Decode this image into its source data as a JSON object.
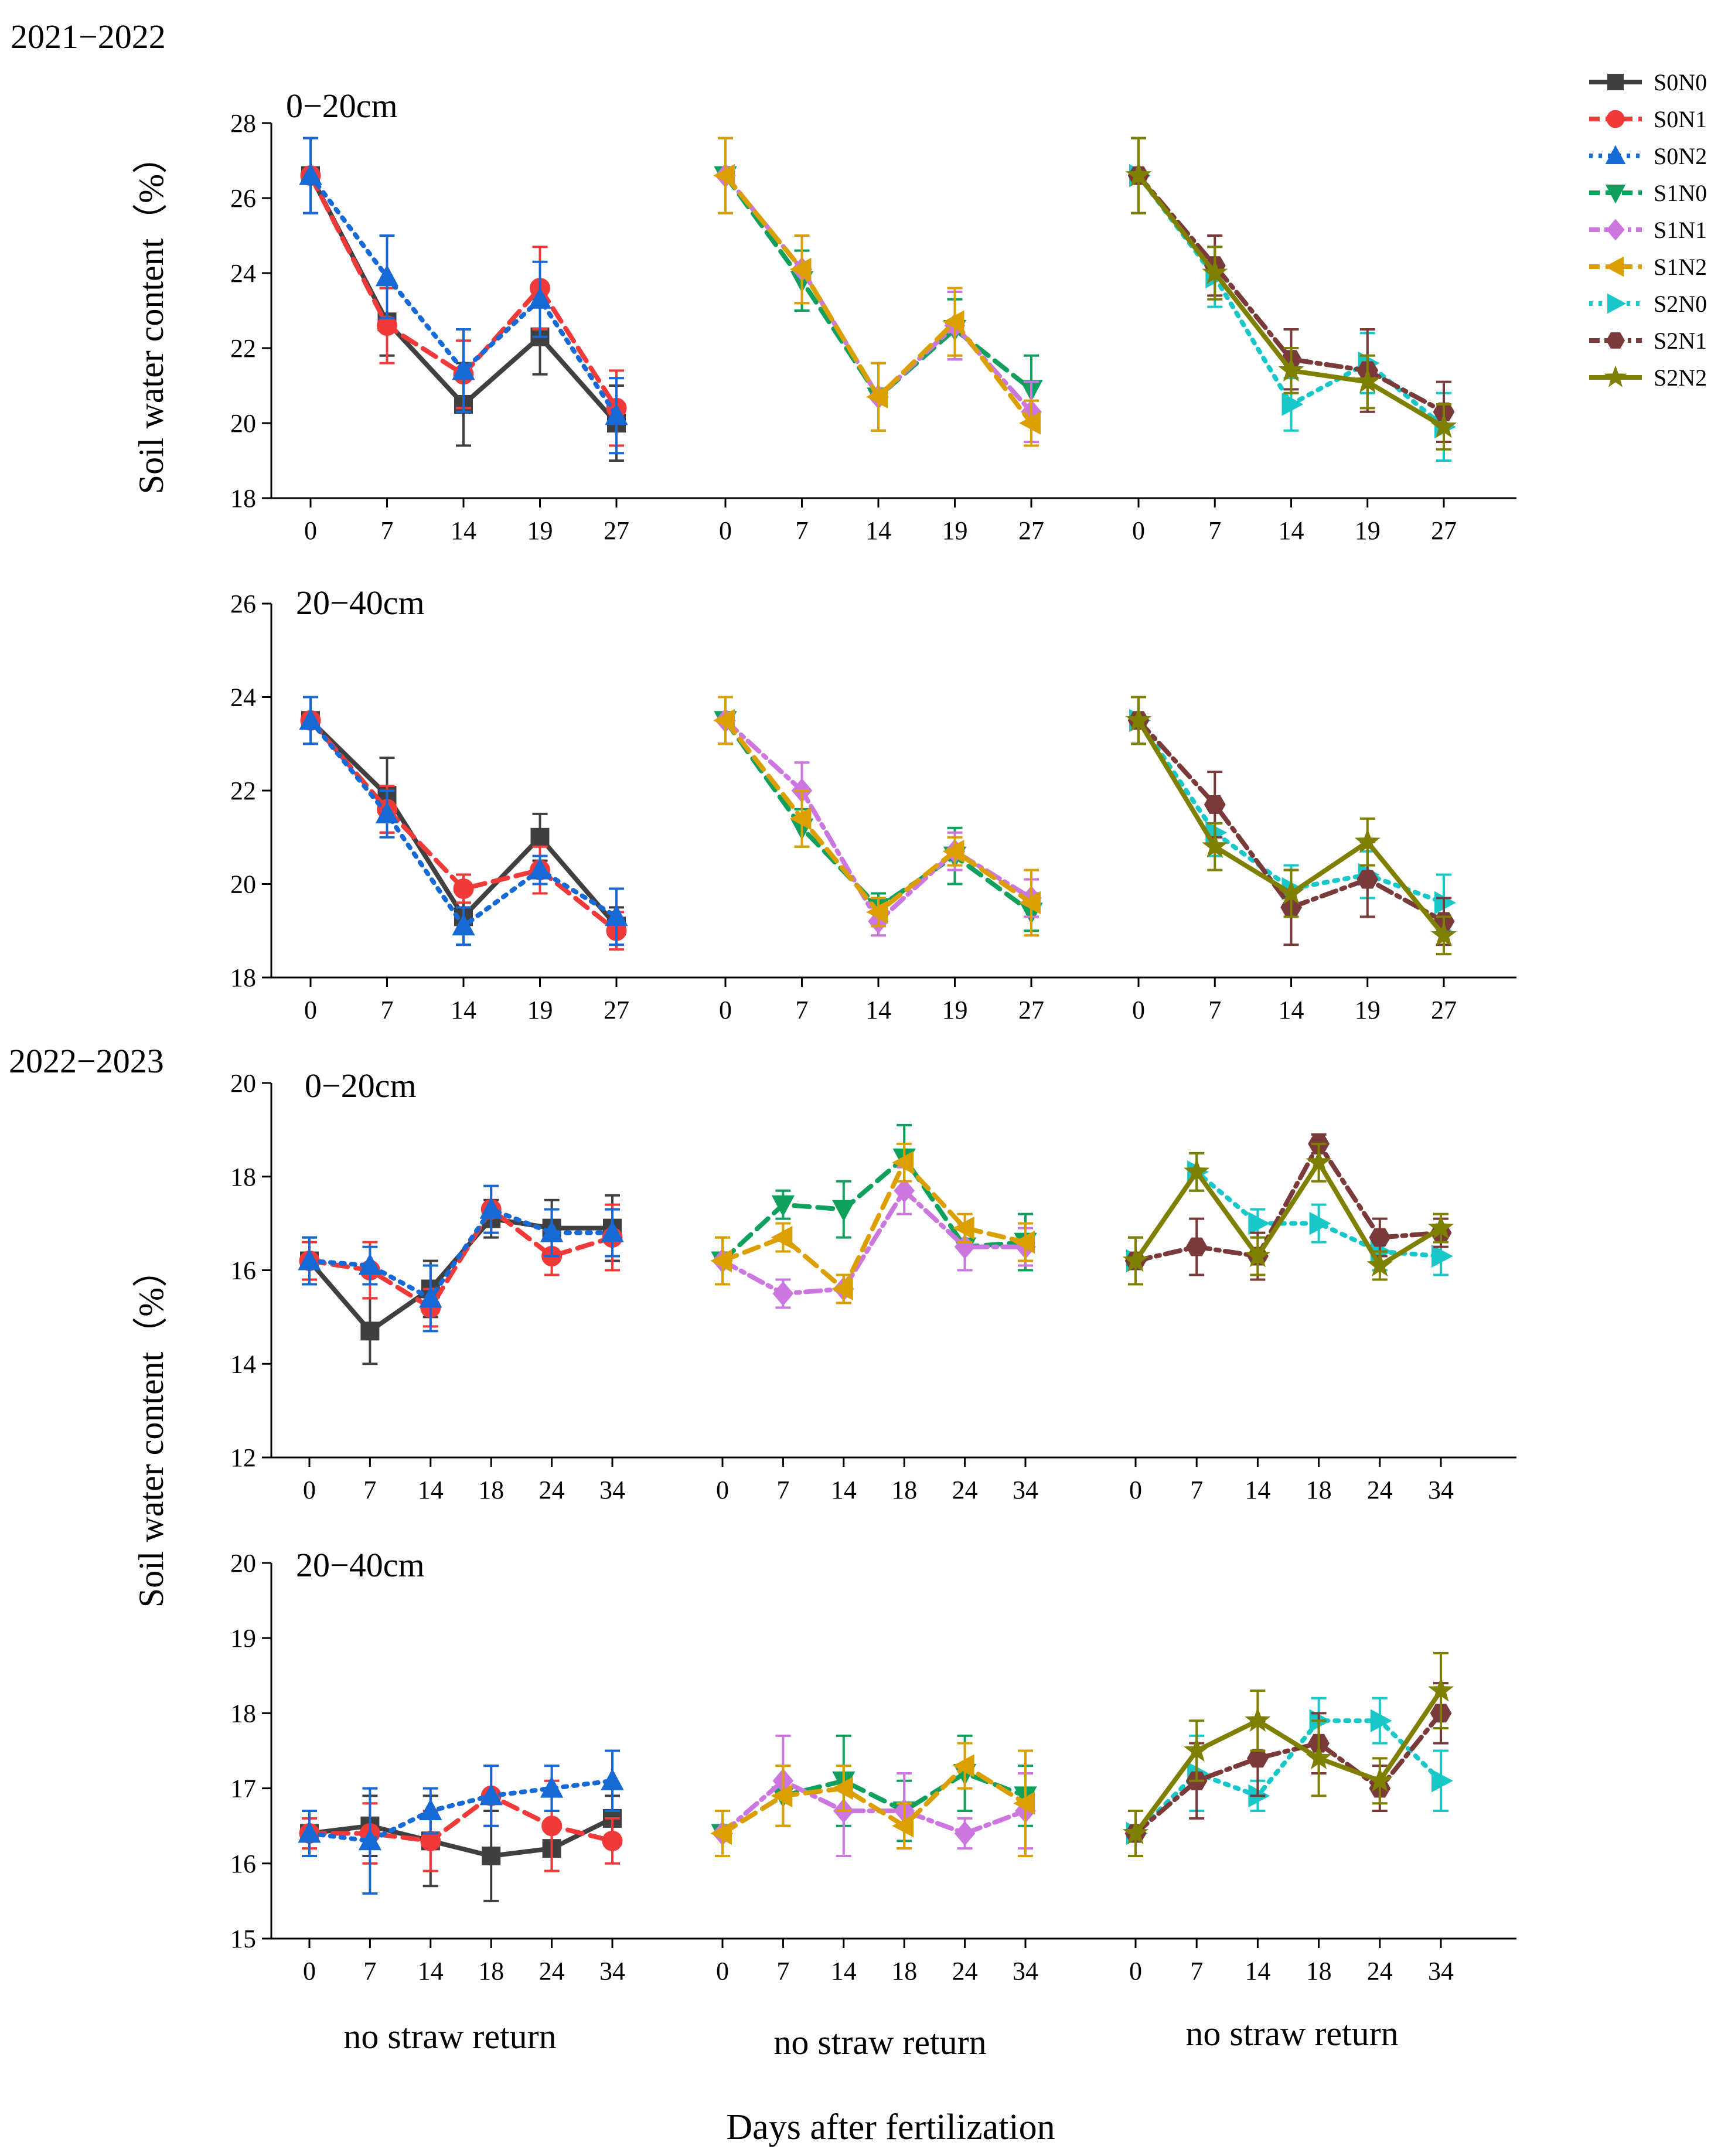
{
  "figure": {
    "x_axis_title": "Days after fertilization",
    "y_axis_title": "Soil water content（%）",
    "group_labels": [
      "no straw return",
      "no straw return",
      "no straw return"
    ]
  },
  "legend": [
    {
      "name": "S0N0",
      "color": "#404040",
      "marker": "square",
      "dash": "solid"
    },
    {
      "name": "S0N1",
      "color": "#f03a3a",
      "marker": "circle",
      "dash": "dash"
    },
    {
      "name": "S0N2",
      "color": "#1769d6",
      "marker": "triangle-up",
      "dash": "dot"
    },
    {
      "name": "S1N0",
      "color": "#0ea05c",
      "marker": "triangle-down",
      "dash": "dash"
    },
    {
      "name": "S1N1",
      "color": "#cc77e0",
      "marker": "diamond",
      "dash": "dashdot"
    },
    {
      "name": "S1N2",
      "color": "#dba000",
      "marker": "triangle-left",
      "dash": "dash"
    },
    {
      "name": "S2N0",
      "color": "#18c8c8",
      "marker": "triangle-right",
      "dash": "dot"
    },
    {
      "name": "S2N1",
      "color": "#7a3a3a",
      "marker": "hexagon",
      "dash": "dashdot"
    },
    {
      "name": "S2N2",
      "color": "#7f7f00",
      "marker": "star",
      "dash": "solid"
    }
  ],
  "chart_data": [
    {
      "type": "line",
      "season": "2021−2022",
      "title": "0−20cm",
      "x": [
        "0",
        "7",
        "14",
        "19",
        "27"
      ],
      "ylim": [
        18,
        28
      ],
      "yticks": [
        "18",
        "20",
        "22",
        "24",
        "26",
        "28"
      ],
      "groups": [
        {
          "series": [
            {
              "name": "S0N0",
              "values": [
                26.6,
                22.7,
                20.5,
                22.3,
                20.0
              ],
              "err": [
                1.0,
                0.9,
                1.1,
                1.0,
                1.0
              ]
            },
            {
              "name": "S0N1",
              "values": [
                26.6,
                22.6,
                21.3,
                23.6,
                20.4
              ],
              "err": [
                1.0,
                1.0,
                0.9,
                1.1,
                1.0
              ]
            },
            {
              "name": "S0N2",
              "values": [
                26.6,
                23.9,
                21.4,
                23.3,
                20.2
              ],
              "err": [
                1.0,
                1.1,
                1.1,
                1.0,
                1.0
              ]
            }
          ]
        },
        {
          "series": [
            {
              "name": "S1N0",
              "values": [
                26.6,
                23.8,
                20.7,
                22.5,
                20.9
              ],
              "err": [
                1.0,
                0.8,
                0.9,
                0.8,
                0.9
              ]
            },
            {
              "name": "S1N1",
              "values": [
                26.6,
                24.1,
                20.7,
                22.6,
                20.3
              ],
              "err": [
                1.0,
                0.9,
                0.9,
                0.9,
                0.8
              ]
            },
            {
              "name": "S1N2",
              "values": [
                26.6,
                24.1,
                20.7,
                22.7,
                20.0
              ],
              "err": [
                1.0,
                0.9,
                0.9,
                0.9,
                0.6
              ]
            }
          ]
        },
        {
          "series": [
            {
              "name": "S2N0",
              "values": [
                26.6,
                23.9,
                20.5,
                21.6,
                19.9
              ],
              "err": [
                1.0,
                0.8,
                0.7,
                0.8,
                0.9
              ]
            },
            {
              "name": "S2N1",
              "values": [
                26.6,
                24.2,
                21.7,
                21.4,
                20.3
              ],
              "err": [
                1.0,
                0.8,
                0.8,
                1.1,
                0.8
              ]
            },
            {
              "name": "S2N2",
              "values": [
                26.6,
                24.0,
                21.4,
                21.1,
                19.9
              ],
              "err": [
                1.0,
                0.7,
                0.6,
                0.7,
                0.6
              ]
            }
          ]
        }
      ]
    },
    {
      "type": "line",
      "season": "",
      "title": "20−40cm",
      "x": [
        "0",
        "7",
        "14",
        "19",
        "27"
      ],
      "ylim": [
        18,
        26
      ],
      "yticks": [
        "18",
        "20",
        "22",
        "24",
        "26"
      ],
      "groups": [
        {
          "series": [
            {
              "name": "S0N0",
              "values": [
                23.5,
                21.9,
                19.3,
                21.0,
                19.1
              ],
              "err": [
                0.5,
                0.8,
                0.6,
                0.5,
                0.4
              ]
            },
            {
              "name": "S0N1",
              "values": [
                23.5,
                21.6,
                19.9,
                20.3,
                19.0
              ],
              "err": [
                0.5,
                0.5,
                0.3,
                0.5,
                0.4
              ]
            },
            {
              "name": "S0N2",
              "values": [
                23.5,
                21.5,
                19.1,
                20.3,
                19.3
              ],
              "err": [
                0.5,
                0.5,
                0.4,
                0.3,
                0.6
              ]
            }
          ]
        },
        {
          "series": [
            {
              "name": "S1N0",
              "values": [
                23.5,
                21.2,
                19.5,
                20.6,
                19.4
              ],
              "err": [
                0.5,
                0.4,
                0.3,
                0.6,
                0.4
              ]
            },
            {
              "name": "S1N1",
              "values": [
                23.5,
                22.0,
                19.2,
                20.7,
                19.7
              ],
              "err": [
                0.5,
                0.6,
                0.3,
                0.4,
                0.4
              ]
            },
            {
              "name": "S1N2",
              "values": [
                23.5,
                21.4,
                19.4,
                20.7,
                19.6
              ],
              "err": [
                0.5,
                0.6,
                0.3,
                0.3,
                0.7
              ]
            }
          ]
        },
        {
          "series": [
            {
              "name": "S2N0",
              "values": [
                23.5,
                21.1,
                19.9,
                20.2,
                19.6
              ],
              "err": [
                0.5,
                0.5,
                0.5,
                0.5,
                0.6
              ]
            },
            {
              "name": "S2N1",
              "values": [
                23.5,
                21.7,
                19.5,
                20.1,
                19.2
              ],
              "err": [
                0.5,
                0.7,
                0.8,
                0.8,
                0.5
              ]
            },
            {
              "name": "S2N2",
              "values": [
                23.5,
                20.8,
                19.8,
                20.9,
                18.9
              ],
              "err": [
                0.5,
                0.5,
                0.5,
                0.5,
                0.4
              ]
            }
          ]
        }
      ]
    },
    {
      "type": "line",
      "season": "2022−2023",
      "title": "0−20cm",
      "x": [
        "0",
        "7",
        "14",
        "18",
        "24",
        "34"
      ],
      "ylim": [
        12,
        20
      ],
      "yticks": [
        "12",
        "14",
        "16",
        "18",
        "20"
      ],
      "groups": [
        {
          "series": [
            {
              "name": "S0N0",
              "values": [
                16.2,
                14.7,
                15.6,
                17.1,
                16.9,
                16.9
              ],
              "err": [
                0.5,
                0.7,
                0.6,
                0.4,
                0.6,
                0.7
              ]
            },
            {
              "name": "S0N1",
              "values": [
                16.2,
                16.0,
                15.2,
                17.3,
                16.3,
                16.7
              ],
              "err": [
                0.4,
                0.6,
                0.4,
                0.5,
                0.4,
                0.7
              ]
            },
            {
              "name": "S0N2",
              "values": [
                16.2,
                16.1,
                15.4,
                17.3,
                16.8,
                16.8
              ],
              "err": [
                0.5,
                0.4,
                0.7,
                0.5,
                0.5,
                0.5
              ]
            }
          ]
        },
        {
          "series": [
            {
              "name": "S1N0",
              "values": [
                16.2,
                17.4,
                17.3,
                18.4,
                16.5,
                16.6
              ],
              "err": [
                0.5,
                0.3,
                0.6,
                0.7,
                0.5,
                0.6
              ]
            },
            {
              "name": "S1N1",
              "values": [
                16.2,
                15.5,
                15.6,
                17.7,
                16.5,
                16.5
              ],
              "err": [
                0.5,
                0.3,
                0.3,
                0.5,
                0.5,
                0.4
              ]
            },
            {
              "name": "S1N2",
              "values": [
                16.2,
                16.7,
                15.6,
                18.3,
                16.9,
                16.6
              ],
              "err": [
                0.5,
                0.3,
                0.3,
                0.4,
                0.3,
                0.4
              ]
            }
          ]
        },
        {
          "series": [
            {
              "name": "S2N0",
              "values": [
                16.2,
                18.1,
                17.0,
                17.0,
                16.4,
                16.3
              ],
              "err": [
                0.5,
                0.4,
                0.3,
                0.4,
                0.4,
                0.4
              ]
            },
            {
              "name": "S2N1",
              "values": [
                16.2,
                16.5,
                16.3,
                18.7,
                16.7,
                16.8
              ],
              "err": [
                0.5,
                0.6,
                0.5,
                0.2,
                0.4,
                0.3
              ]
            },
            {
              "name": "S2N2",
              "values": [
                16.2,
                18.1,
                16.3,
                18.3,
                16.1,
                16.9
              ],
              "err": [
                0.5,
                0.4,
                0.4,
                0.4,
                0.3,
                0.3
              ]
            }
          ]
        }
      ]
    },
    {
      "type": "line",
      "season": "",
      "title": "20−40cm",
      "x": [
        "0",
        "7",
        "14",
        "18",
        "24",
        "34"
      ],
      "ylim": [
        15,
        20
      ],
      "yticks": [
        "15",
        "16",
        "17",
        "18",
        "19",
        "20"
      ],
      "groups": [
        {
          "series": [
            {
              "name": "S0N0",
              "values": [
                16.4,
                16.5,
                16.3,
                16.1,
                16.2,
                16.6
              ],
              "err": [
                0.3,
                0.4,
                0.6,
                0.6,
                0.3,
                0.3
              ]
            },
            {
              "name": "S0N1",
              "values": [
                16.4,
                16.4,
                16.3,
                16.9,
                16.5,
                16.3
              ],
              "err": [
                0.2,
                0.4,
                0.4,
                0.4,
                0.6,
                0.3
              ]
            },
            {
              "name": "S0N2",
              "values": [
                16.4,
                16.3,
                16.7,
                16.9,
                17.0,
                17.1
              ],
              "err": [
                0.3,
                0.7,
                0.3,
                0.4,
                0.3,
                0.4
              ]
            }
          ]
        },
        {
          "series": [
            {
              "name": "S1N0",
              "values": [
                16.4,
                16.9,
                17.1,
                16.7,
                17.2,
                16.9
              ],
              "err": [
                0.3,
                0.4,
                0.6,
                0.4,
                0.5,
                0.4
              ]
            },
            {
              "name": "S1N1",
              "values": [
                16.4,
                17.1,
                16.7,
                16.7,
                16.4,
                16.7
              ],
              "err": [
                0.3,
                0.6,
                0.6,
                0.5,
                0.2,
                0.5
              ]
            },
            {
              "name": "S1N2",
              "values": [
                16.4,
                16.9,
                17.0,
                16.5,
                17.3,
                16.8
              ],
              "err": [
                0.3,
                0.4,
                0.3,
                0.3,
                0.3,
                0.7
              ]
            }
          ]
        },
        {
          "series": [
            {
              "name": "S2N0",
              "values": [
                16.4,
                17.2,
                16.9,
                17.9,
                17.9,
                17.1
              ],
              "err": [
                0.3,
                0.5,
                0.2,
                0.3,
                0.3,
                0.4
              ]
            },
            {
              "name": "S2N1",
              "values": [
                16.4,
                17.1,
                17.4,
                17.6,
                17.0,
                18.0
              ],
              "err": [
                0.3,
                0.5,
                0.5,
                0.4,
                0.3,
                0.4
              ]
            },
            {
              "name": "S2N2",
              "values": [
                16.4,
                17.5,
                17.9,
                17.4,
                17.1,
                18.3
              ],
              "err": [
                0.3,
                0.4,
                0.4,
                0.5,
                0.3,
                0.5
              ]
            }
          ]
        }
      ]
    }
  ]
}
